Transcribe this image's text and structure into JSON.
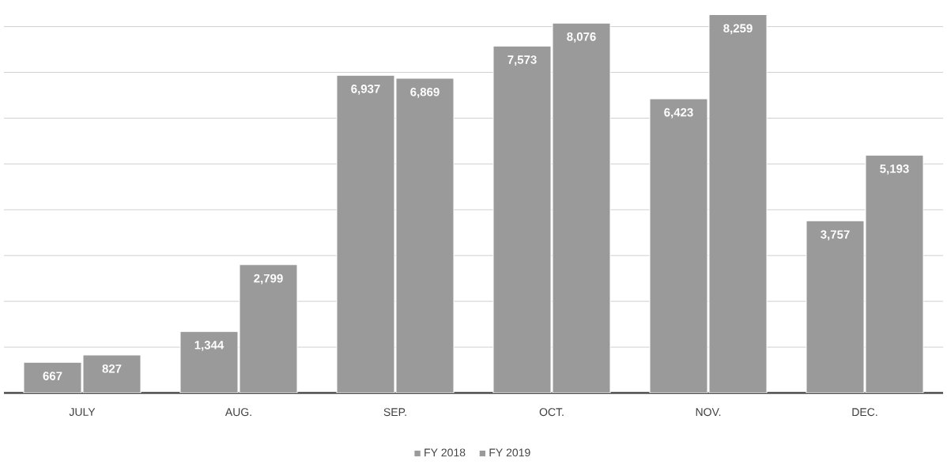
{
  "chart_data": {
    "type": "bar",
    "categories": [
      "JULY",
      "AUG.",
      "SEP.",
      "OCT.",
      "NOV.",
      "DEC."
    ],
    "series": [
      {
        "name": "FY 2018",
        "color": "#9a9a9a",
        "values": [
          667,
          1344,
          6937,
          7573,
          6423,
          3757
        ],
        "value_labels": [
          "667",
          "1,344",
          "6,937",
          "7,573",
          "6,423",
          "3,757"
        ]
      },
      {
        "name": "FY 2019",
        "color": "#9a9a9a",
        "values": [
          827,
          2799,
          6869,
          8076,
          8259,
          5193
        ],
        "value_labels": [
          "827",
          "2,799",
          "6,869",
          "8,076",
          "8,259",
          "5,193"
        ]
      }
    ],
    "grid": "y",
    "legend": "bottom",
    "tick_labels": "x"
  }
}
